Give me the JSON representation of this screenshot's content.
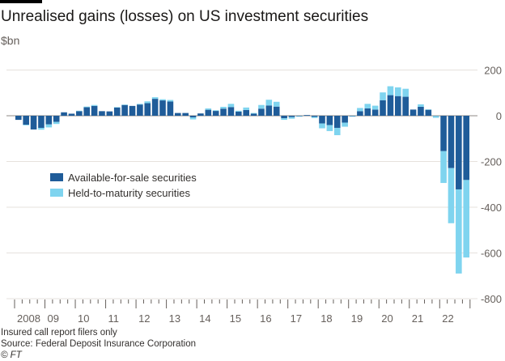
{
  "chart_data": {
    "type": "bar",
    "stacked": true,
    "title": "Unrealised gains (losses) on US investment securities",
    "ylabel": "$bn",
    "ylim": [
      -800,
      200
    ],
    "yticks": [
      200,
      0,
      -200,
      -400,
      -600,
      -800
    ],
    "ytick_labels": [
      "200",
      "0",
      "-200",
      "-400",
      "-600",
      "-800"
    ],
    "xtick_labels": [
      "2008",
      "09",
      "10",
      "11",
      "12",
      "13",
      "14",
      "15",
      "16",
      "17",
      "18",
      "19",
      "20",
      "21",
      "22"
    ],
    "categories_note": "Quarterly, 2008 Q1 to 2022 Q4",
    "legend": "center-left",
    "series": [
      {
        "name": "Available-for-sale securities",
        "color": "#1f5c99",
        "values": [
          -18,
          -39,
          -60,
          -53,
          -38,
          -27,
          15,
          9,
          20,
          37,
          43,
          20,
          19,
          36,
          47,
          43,
          49,
          55,
          74,
          67,
          62,
          12,
          12,
          -7,
          10,
          26,
          21,
          31,
          38,
          18,
          25,
          9,
          31,
          45,
          40,
          -11,
          -6,
          -2,
          3,
          -5,
          -34,
          -41,
          -53,
          -30,
          -2,
          20,
          32,
          27,
          68,
          90,
          86,
          83,
          27,
          39,
          26,
          -1,
          -155,
          -229,
          -322,
          -281
        ]
      },
      {
        "name": "Held-to-maturity securities",
        "color": "#7fd4ef",
        "values": [
          0,
          -3,
          0,
          -8,
          -13,
          -9,
          0,
          0,
          2,
          3,
          4,
          0,
          0,
          2,
          2,
          0,
          3,
          8,
          7,
          5,
          7,
          0,
          0,
          -9,
          0,
          6,
          3,
          8,
          14,
          4,
          11,
          3,
          16,
          25,
          21,
          -7,
          -7,
          -2,
          0,
          -5,
          -21,
          -26,
          -32,
          -18,
          -2,
          14,
          20,
          17,
          34,
          39,
          38,
          35,
          0,
          11,
          2,
          -8,
          -139,
          -241,
          -368,
          -339
        ]
      }
    ]
  },
  "footer": {
    "note": "Insured call report filers only",
    "source": "Source: Federal Deposit Insurance Corporation",
    "credit": "© FT"
  }
}
